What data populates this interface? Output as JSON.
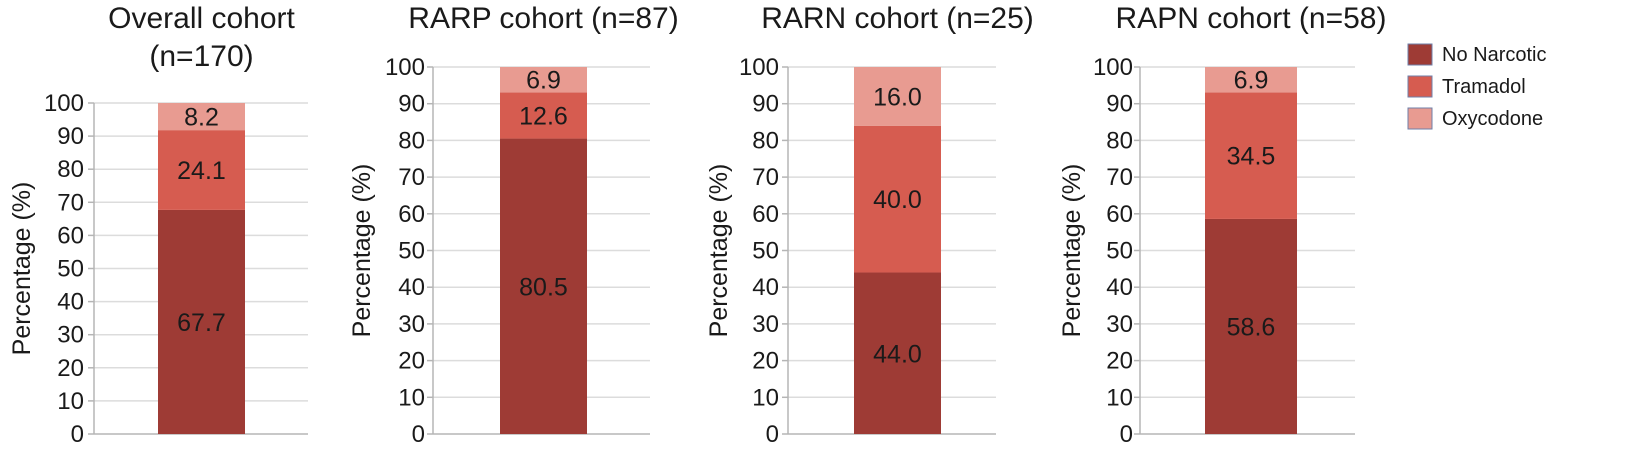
{
  "colors": {
    "no_narcotic": "#9E3B35",
    "tramadol": "#D65C50",
    "oxycodone": "#E89B91",
    "grid": "#dcdcdc",
    "axis": "#b5b5b5"
  },
  "legend": [
    {
      "label": "No Narcotic",
      "color_key": "no_narcotic"
    },
    {
      "label": "Tramadol",
      "color_key": "tramadol"
    },
    {
      "label": "Oxycodone",
      "color_key": "oxycodone"
    }
  ],
  "chart_data": [
    {
      "type": "bar",
      "stacked": true,
      "title": [
        "Overall cohort",
        "(n=170)"
      ],
      "ylabel": "Percentage (%)",
      "ylim": [
        0,
        100
      ],
      "yticks": [
        0,
        10,
        20,
        30,
        40,
        50,
        60,
        70,
        80,
        90,
        100
      ],
      "series": [
        {
          "name": "No Narcotic",
          "values": [
            67.7
          ],
          "labels": [
            "67.7"
          ]
        },
        {
          "name": "Tramadol",
          "values": [
            24.1
          ],
          "labels": [
            "24.1"
          ]
        },
        {
          "name": "Oxycodone",
          "values": [
            8.2
          ],
          "labels": [
            "8.2"
          ]
        }
      ]
    },
    {
      "type": "bar",
      "stacked": true,
      "title": [
        "RARP cohort (n=87)"
      ],
      "ylabel": "Percentage (%)",
      "ylim": [
        0,
        100
      ],
      "yticks": [
        0,
        10,
        20,
        30,
        40,
        50,
        60,
        70,
        80,
        90,
        100
      ],
      "series": [
        {
          "name": "No Narcotic",
          "values": [
            80.5
          ],
          "labels": [
            "80.5"
          ]
        },
        {
          "name": "Tramadol",
          "values": [
            12.6
          ],
          "labels": [
            "12.6"
          ]
        },
        {
          "name": "Oxycodone",
          "values": [
            6.9
          ],
          "labels": [
            "6.9"
          ]
        }
      ]
    },
    {
      "type": "bar",
      "stacked": true,
      "title": [
        "RARN cohort (n=25)"
      ],
      "ylabel": "Percentage (%)",
      "ylim": [
        0,
        100
      ],
      "yticks": [
        0,
        10,
        20,
        30,
        40,
        50,
        60,
        70,
        80,
        90,
        100
      ],
      "series": [
        {
          "name": "No Narcotic",
          "values": [
            44.0
          ],
          "labels": [
            "44.0"
          ]
        },
        {
          "name": "Tramadol",
          "values": [
            40.0
          ],
          "labels": [
            "40.0"
          ]
        },
        {
          "name": "Oxycodone",
          "values": [
            16.0
          ],
          "labels": [
            "16.0"
          ]
        }
      ]
    },
    {
      "type": "bar",
      "stacked": true,
      "title": [
        "RAPN cohort (n=58)"
      ],
      "ylabel": "Percentage (%)",
      "ylim": [
        0,
        100
      ],
      "yticks": [
        0,
        10,
        20,
        30,
        40,
        50,
        60,
        70,
        80,
        90,
        100
      ],
      "series": [
        {
          "name": "No Narcotic",
          "values": [
            58.6
          ],
          "labels": [
            "58.6"
          ]
        },
        {
          "name": "Tramadol",
          "values": [
            34.5
          ],
          "labels": [
            "34.5"
          ]
        },
        {
          "name": "Oxycodone",
          "values": [
            6.9
          ],
          "labels": [
            "6.9"
          ]
        }
      ]
    }
  ]
}
